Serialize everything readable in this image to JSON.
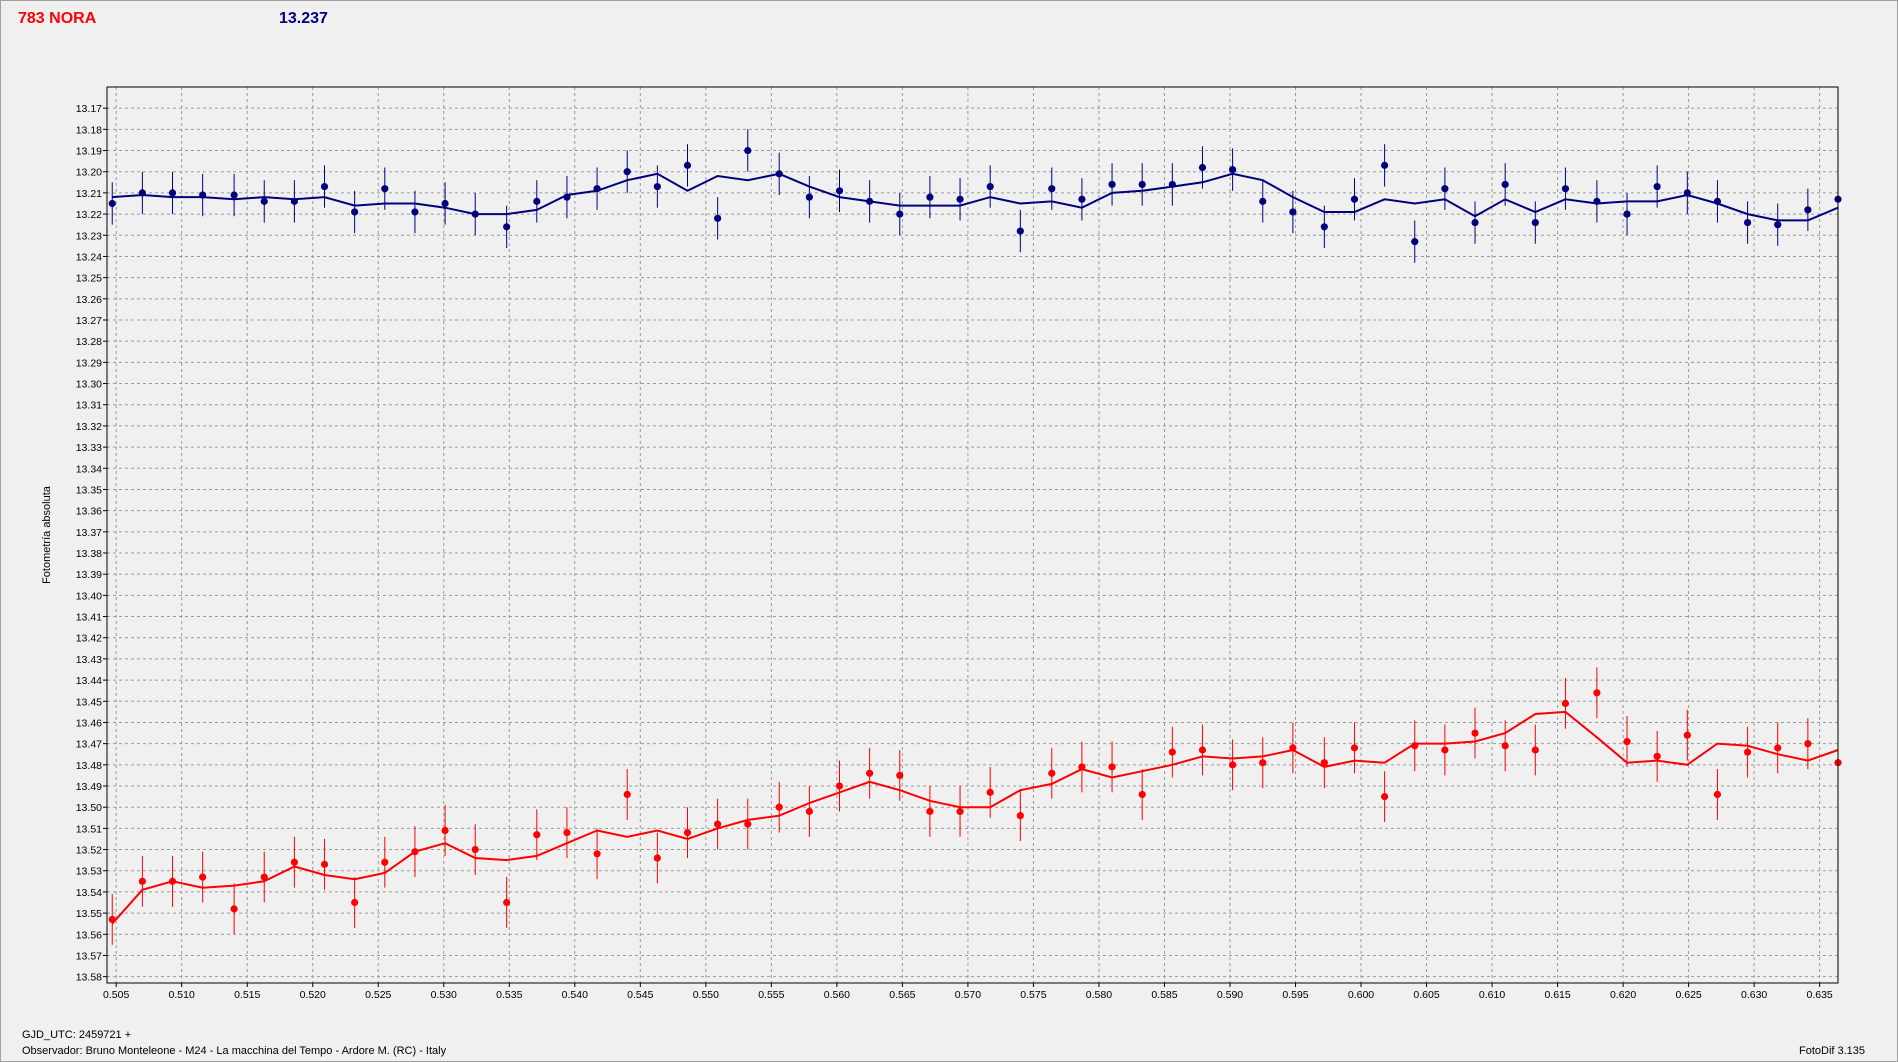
{
  "header": {
    "object_name": "783 NORA",
    "magnitude": "13.237"
  },
  "footer": {
    "gjd": "GJD_UTC: 2459721 +",
    "observer": "Observador: Bruno Monteleone - M24 - La macchina del Tempo - Ardore M. (RC) - Italy",
    "software": "FotoDif 3.135"
  },
  "colors": {
    "blue_series": "#00007f",
    "red_series": "#ff0000",
    "grid": "#9a9a9a",
    "plot_bg": "#f0f0f0"
  },
  "chart_data": {
    "type": "scatter",
    "ylabel": "Fotometría absoluta",
    "xlabel": "",
    "xlim": [
      0.5043,
      0.6364
    ],
    "ylim": [
      13.16,
      13.583
    ],
    "y_inverted": true,
    "x_ticks": [
      "0.505",
      "0.510",
      "0.515",
      "0.520",
      "0.525",
      "0.530",
      "0.535",
      "0.540",
      "0.545",
      "0.550",
      "0.555",
      "0.560",
      "0.565",
      "0.570",
      "0.575",
      "0.580",
      "0.585",
      "0.590",
      "0.595",
      "0.600",
      "0.605",
      "0.610",
      "0.615",
      "0.620",
      "0.625",
      "0.630",
      "0.635"
    ],
    "y_ticks": [
      "13.17",
      "13.18",
      "13.19",
      "13.20",
      "13.21",
      "13.22",
      "13.23",
      "13.24",
      "13.25",
      "13.26",
      "13.27",
      "13.28",
      "13.29",
      "13.30",
      "13.31",
      "13.32",
      "13.33",
      "13.34",
      "13.35",
      "13.36",
      "13.37",
      "13.38",
      "13.39",
      "13.40",
      "13.41",
      "13.42",
      "13.43",
      "13.44",
      "13.45",
      "13.46",
      "13.47",
      "13.48",
      "13.49",
      "13.50",
      "13.51",
      "13.52",
      "13.53",
      "13.54",
      "13.55",
      "13.56",
      "13.57",
      "13.58"
    ],
    "grid": true,
    "series": [
      {
        "color": "#00007f",
        "error": 0.01,
        "x": [
          0.5047,
          0.507,
          0.5093,
          0.5116,
          0.514,
          0.5163,
          0.5186,
          0.5209,
          0.5232,
          0.5255,
          0.5278,
          0.5301,
          0.5324,
          0.5348,
          0.5371,
          0.5394,
          0.5417,
          0.544,
          0.5463,
          0.5486,
          0.5509,
          0.5532,
          0.5556,
          0.5579,
          0.5602,
          0.5625,
          0.5648,
          0.5671,
          0.5694,
          0.5717,
          0.574,
          0.5764,
          0.5787,
          0.581,
          0.5833,
          0.5856,
          0.5879,
          0.5902,
          0.5925,
          0.5948,
          0.5972,
          0.5995,
          0.6018,
          0.6041,
          0.6064,
          0.6087,
          0.611,
          0.6133,
          0.6156,
          0.618,
          0.6203,
          0.6226,
          0.6249,
          0.6272,
          0.6295,
          0.6318,
          0.6341,
          0.6364
        ],
        "y": [
          13.215,
          13.21,
          13.21,
          13.211,
          13.211,
          13.214,
          13.214,
          13.207,
          13.219,
          13.208,
          13.219,
          13.215,
          13.22,
          13.226,
          13.214,
          13.212,
          13.208,
          13.2,
          13.207,
          13.197,
          13.222,
          13.19,
          13.201,
          13.212,
          13.209,
          13.214,
          13.22,
          13.212,
          13.213,
          13.207,
          13.228,
          13.208,
          13.213,
          13.206,
          13.206,
          13.206,
          13.198,
          13.199,
          13.214,
          13.219,
          13.226,
          13.213,
          13.197,
          13.233,
          13.208,
          13.224,
          13.206,
          13.224,
          13.208,
          13.214,
          13.22,
          13.207,
          13.21,
          13.214,
          13.224,
          13.225,
          13.218,
          13.213
        ],
        "fit": [
          13.212,
          13.211,
          13.212,
          13.212,
          13.213,
          13.212,
          13.213,
          13.212,
          13.216,
          13.215,
          13.215,
          13.217,
          13.22,
          13.22,
          13.218,
          13.211,
          13.209,
          13.204,
          13.201,
          13.209,
          13.202,
          13.204,
          13.201,
          13.207,
          13.212,
          13.214,
          13.216,
          13.216,
          13.216,
          13.212,
          13.215,
          13.214,
          13.217,
          13.21,
          13.209,
          13.207,
          13.205,
          13.201,
          13.204,
          13.212,
          13.219,
          13.219,
          13.213,
          13.215,
          13.213,
          13.221,
          13.213,
          13.219,
          13.213,
          13.215,
          13.214,
          13.214,
          13.211,
          13.215,
          13.22,
          13.223,
          13.223,
          13.217
        ]
      },
      {
        "color": "#ff0000",
        "error": 0.012,
        "x": [
          0.5047,
          0.507,
          0.5093,
          0.5116,
          0.514,
          0.5163,
          0.5186,
          0.5209,
          0.5232,
          0.5255,
          0.5278,
          0.5301,
          0.5324,
          0.5348,
          0.5371,
          0.5394,
          0.5417,
          0.544,
          0.5463,
          0.5486,
          0.5509,
          0.5532,
          0.5556,
          0.5579,
          0.5602,
          0.5625,
          0.5648,
          0.5671,
          0.5694,
          0.5717,
          0.574,
          0.5764,
          0.5787,
          0.581,
          0.5833,
          0.5856,
          0.5879,
          0.5902,
          0.5925,
          0.5948,
          0.5972,
          0.5995,
          0.6018,
          0.6041,
          0.6064,
          0.6087,
          0.611,
          0.6133,
          0.6156,
          0.618,
          0.6203,
          0.6226,
          0.6249,
          0.6272,
          0.6295,
          0.6318,
          0.6341,
          0.6364
        ],
        "y": [
          13.553,
          13.535,
          13.535,
          13.533,
          13.548,
          13.533,
          13.526,
          13.527,
          13.545,
          13.526,
          13.521,
          13.511,
          13.52,
          13.545,
          13.513,
          13.512,
          13.522,
          13.494,
          13.524,
          13.512,
          13.508,
          13.508,
          13.5,
          13.502,
          13.49,
          13.484,
          13.485,
          13.502,
          13.502,
          13.493,
          13.504,
          13.484,
          13.481,
          13.481,
          13.494,
          13.474,
          13.473,
          13.48,
          13.479,
          13.472,
          13.479,
          13.472,
          13.495,
          13.471,
          13.473,
          13.465,
          13.471,
          13.473,
          13.451,
          13.446,
          13.469,
          13.476,
          13.466,
          13.494,
          13.474,
          13.472,
          13.47,
          13.479
        ],
        "fit": [
          13.555,
          13.539,
          13.535,
          13.538,
          13.537,
          13.535,
          13.528,
          13.532,
          13.534,
          13.531,
          13.521,
          13.517,
          13.524,
          13.525,
          13.523,
          13.517,
          13.511,
          13.514,
          13.511,
          13.515,
          13.51,
          13.506,
          13.504,
          13.498,
          13.493,
          13.488,
          13.492,
          13.497,
          13.5,
          13.5,
          13.492,
          13.489,
          13.482,
          13.486,
          13.483,
          13.48,
          13.476,
          13.477,
          13.476,
          13.473,
          13.481,
          13.478,
          13.479,
          13.47,
          13.47,
          13.469,
          13.465,
          13.456,
          13.455,
          13.467,
          13.479,
          13.478,
          13.48,
          13.47,
          13.471,
          13.475,
          13.478,
          13.473
        ]
      }
    ]
  }
}
